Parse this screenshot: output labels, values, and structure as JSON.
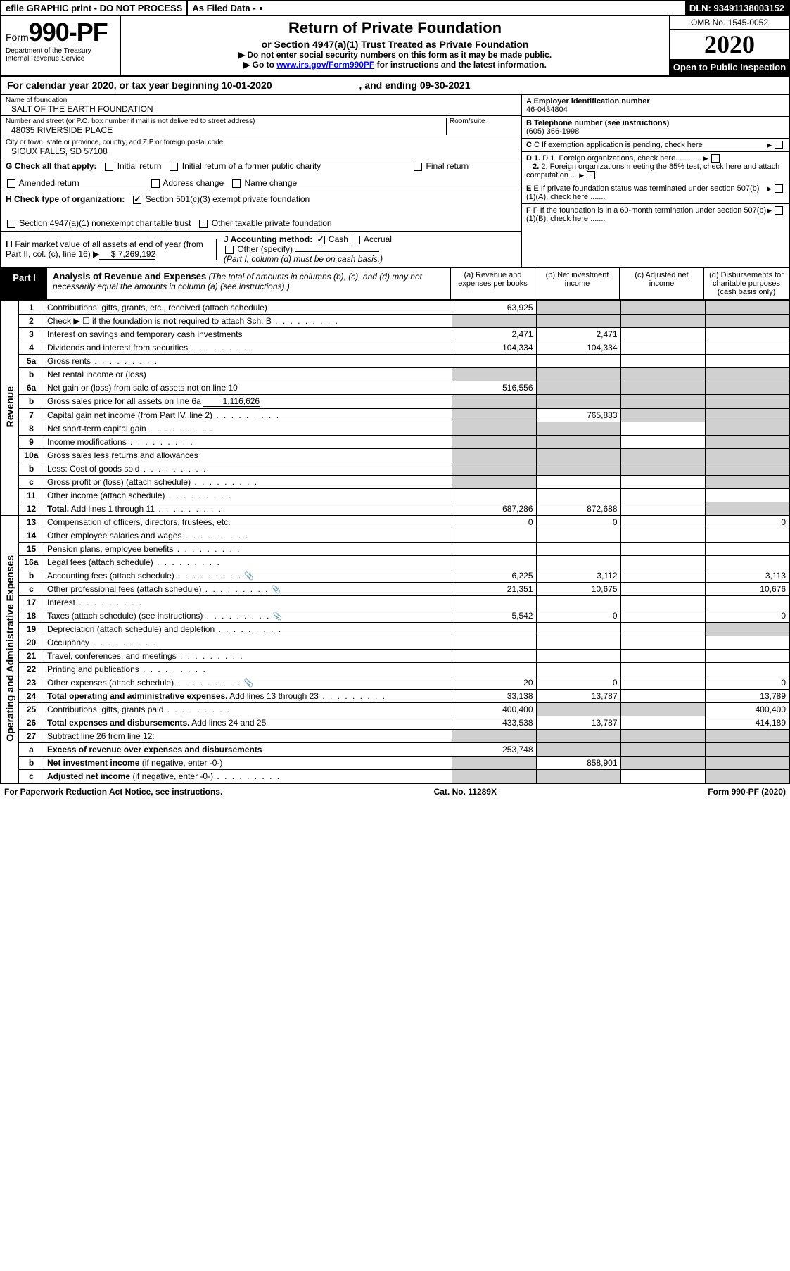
{
  "top": {
    "efile": "efile GRAPHIC print - DO NOT PROCESS",
    "asfiled": "As Filed Data -",
    "dln": "DLN: 93491138003152"
  },
  "header": {
    "form_prefix": "Form",
    "form_no": "990-PF",
    "dept1": "Department of the Treasury",
    "dept2": "Internal Revenue Service",
    "title": "Return of Private Foundation",
    "subtitle": "or Section 4947(a)(1) Trust Treated as Private Foundation",
    "note1": "▶  Do not enter social security numbers on this form as it may be made public.",
    "note2_pre": "▶ Go to ",
    "note2_link": "www.irs.gov/Form990PF",
    "note2_post": " for instructions and the latest information.",
    "omb": "OMB No. 1545-0052",
    "year": "2020",
    "open": "Open to Public Inspection"
  },
  "calyear": {
    "text": "For calendar year 2020, or tax year beginning 10-01-2020",
    "end": ", and ending 09-30-2021"
  },
  "entity": {
    "name_lbl": "Name of foundation",
    "name": "SALT OF THE EARTH FOUNDATION",
    "addr_lbl": "Number and street (or P.O. box number if mail is not delivered to street address)",
    "room_lbl": "Room/suite",
    "addr": "48035 RIVERSIDE PLACE",
    "city_lbl": "City or town, state or province, country, and ZIP or foreign postal code",
    "city": "SIOUX FALLS, SD  57108",
    "g_lbl": "G Check all that apply:",
    "g_opts": [
      "Initial return",
      "Initial return of a former public charity",
      "Final return",
      "Amended return",
      "Address change",
      "Name change"
    ],
    "h_lbl": "H Check type of organization:",
    "h_opt1": "Section 501(c)(3) exempt private foundation",
    "h_opt2": "Section 4947(a)(1) nonexempt charitable trust",
    "h_opt3": "Other taxable private foundation",
    "i_lbl": "I Fair market value of all assets at end of year (from Part II, col. (c), line 16)",
    "i_val": "$  7,269,192",
    "j_lbl": "J Accounting method:",
    "j_opts": [
      "Cash",
      "Accrual",
      "Other (specify)"
    ],
    "j_note": "(Part I, column (d) must be on cash basis.)"
  },
  "right": {
    "a_lbl": "A Employer identification number",
    "a_val": "46-0434804",
    "b_lbl": "B Telephone number (see instructions)",
    "b_val": "(605) 366-1998",
    "c_lbl": "C If exemption application is pending, check here",
    "d1": "D 1. Foreign organizations, check here............",
    "d2": "2. Foreign organizations meeting the 85% test, check here and attach computation ...",
    "e_lbl": "E  If private foundation status was terminated under section 507(b)(1)(A), check here .......",
    "f_lbl": "F  If the foundation is in a 60-month termination under section 507(b)(1)(B), check here ......."
  },
  "part1": {
    "label": "Part I",
    "title": "Analysis of Revenue and Expenses",
    "note": " (The total of amounts in columns (b), (c), and (d) may not necessarily equal the amounts in column (a) (see instructions).)",
    "cols": [
      "(a)   Revenue and expenses per books",
      "(b)  Net investment income",
      "(c)  Adjusted net income",
      "(d)  Disbursements for charitable purposes (cash basis only)"
    ]
  },
  "sections": {
    "revenue": "Revenue",
    "expenses": "Operating and Administrative Expenses"
  },
  "rows": [
    {
      "sec": "rev",
      "n": "1",
      "d": "Contributions, gifts, grants, etc., received (attach schedule)",
      "a": "63,925",
      "bs": true,
      "cs": true,
      "ds": true
    },
    {
      "sec": "rev",
      "n": "2",
      "d": "Check ▶ ☐ if the foundation is <b>not</b> required to attach Sch. B",
      "dots": true,
      "as": true,
      "bs": true,
      "cs": true,
      "ds": true
    },
    {
      "sec": "rev",
      "n": "3",
      "d": "Interest on savings and temporary cash investments",
      "a": "2,471",
      "b": "2,471"
    },
    {
      "sec": "rev",
      "n": "4",
      "d": "Dividends and interest from securities",
      "dots": true,
      "a": "104,334",
      "b": "104,334"
    },
    {
      "sec": "rev",
      "n": "5a",
      "d": "Gross rents",
      "dots": true
    },
    {
      "sec": "rev",
      "n": "b",
      "d": "Net rental income or (loss)",
      "as": true,
      "bs": true,
      "cs": true,
      "ds": true
    },
    {
      "sec": "rev",
      "n": "6a",
      "d": "Net gain or (loss) from sale of assets not on line 10",
      "a": "516,556",
      "bs": true,
      "cs": true,
      "ds": true
    },
    {
      "sec": "rev",
      "n": "b",
      "d": "Gross sales price for all assets on line 6a",
      "tail": "1,116,626",
      "as": true,
      "bs": true,
      "cs": true,
      "ds": true
    },
    {
      "sec": "rev",
      "n": "7",
      "d": "Capital gain net income (from Part IV, line 2)",
      "dots": true,
      "as": true,
      "b": "765,883",
      "cs": true,
      "ds": true
    },
    {
      "sec": "rev",
      "n": "8",
      "d": "Net short-term capital gain",
      "dots": true,
      "as": true,
      "bs": true,
      "ds": true
    },
    {
      "sec": "rev",
      "n": "9",
      "d": "Income modifications",
      "dots": true,
      "as": true,
      "bs": true,
      "ds": true
    },
    {
      "sec": "rev",
      "n": "10a",
      "d": "Gross sales less returns and allowances",
      "as": true,
      "bs": true,
      "cs": true,
      "ds": true
    },
    {
      "sec": "rev",
      "n": "b",
      "d": "Less: Cost of goods sold",
      "dots": true,
      "as": true,
      "bs": true,
      "cs": true,
      "ds": true
    },
    {
      "sec": "rev",
      "n": "c",
      "d": "Gross profit or (loss) (attach schedule)",
      "dots": true,
      "as": true,
      "ds": true
    },
    {
      "sec": "rev",
      "n": "11",
      "d": "Other income (attach schedule)",
      "dots": true
    },
    {
      "sec": "rev",
      "n": "12",
      "d": "<b>Total.</b> Add lines 1 through 11",
      "dots": true,
      "a": "687,286",
      "b": "872,688",
      "ds": true
    },
    {
      "sec": "exp",
      "n": "13",
      "d": "Compensation of officers, directors, trustees, etc.",
      "a": "0",
      "b": "0",
      "d_": "0"
    },
    {
      "sec": "exp",
      "n": "14",
      "d": "Other employee salaries and wages",
      "dots": true
    },
    {
      "sec": "exp",
      "n": "15",
      "d": "Pension plans, employee benefits",
      "dots": true
    },
    {
      "sec": "exp",
      "n": "16a",
      "d": "Legal fees (attach schedule)",
      "dots": true
    },
    {
      "sec": "exp",
      "n": "b",
      "d": "Accounting fees (attach schedule)",
      "dots": true,
      "icon": true,
      "a": "6,225",
      "b": "3,112",
      "d_": "3,113"
    },
    {
      "sec": "exp",
      "n": "c",
      "d": "Other professional fees (attach schedule)",
      "dots": true,
      "icon": true,
      "a": "21,351",
      "b": "10,675",
      "d_": "10,676"
    },
    {
      "sec": "exp",
      "n": "17",
      "d": "Interest",
      "dots": true
    },
    {
      "sec": "exp",
      "n": "18",
      "d": "Taxes (attach schedule) (see instructions)",
      "dots": true,
      "icon": true,
      "a": "5,542",
      "b": "0",
      "d_": "0"
    },
    {
      "sec": "exp",
      "n": "19",
      "d": "Depreciation (attach schedule) and depletion",
      "dots": true,
      "ds": true
    },
    {
      "sec": "exp",
      "n": "20",
      "d": "Occupancy",
      "dots": true
    },
    {
      "sec": "exp",
      "n": "21",
      "d": "Travel, conferences, and meetings",
      "dots": true
    },
    {
      "sec": "exp",
      "n": "22",
      "d": "Printing and publications",
      "dots": true
    },
    {
      "sec": "exp",
      "n": "23",
      "d": "Other expenses (attach schedule)",
      "dots": true,
      "icon": true,
      "a": "20",
      "b": "0",
      "d_": "0"
    },
    {
      "sec": "exp",
      "n": "24",
      "d": "<b>Total operating and administrative expenses.</b> Add lines 13 through 23",
      "dots": true,
      "a": "33,138",
      "b": "13,787",
      "d_": "13,789"
    },
    {
      "sec": "exp",
      "n": "25",
      "d": "Contributions, gifts, grants paid",
      "dots": true,
      "a": "400,400",
      "bs": true,
      "cs": true,
      "d_": "400,400"
    },
    {
      "sec": "exp",
      "n": "26",
      "d": "<b>Total expenses and disbursements.</b> Add lines 24 and 25",
      "a": "433,538",
      "b": "13,787",
      "d_": "414,189"
    },
    {
      "sec": "net",
      "n": "27",
      "d": "Subtract line 26 from line 12:",
      "as": true,
      "bs": true,
      "cs": true,
      "ds": true
    },
    {
      "sec": "net",
      "n": "a",
      "d": "<b>Excess of revenue over expenses and disbursements</b>",
      "a": "253,748",
      "bs": true,
      "cs": true,
      "ds": true
    },
    {
      "sec": "net",
      "n": "b",
      "d": "<b>Net investment income</b> (if negative, enter -0-)",
      "as": true,
      "b": "858,901",
      "cs": true,
      "ds": true
    },
    {
      "sec": "net",
      "n": "c",
      "d": "<b>Adjusted net income</b> (if negative, enter -0-)",
      "dots": true,
      "as": true,
      "bs": true,
      "ds": true
    }
  ],
  "footer": {
    "left": "For Paperwork Reduction Act Notice, see instructions.",
    "mid": "Cat. No. 11289X",
    "right": "Form 990-PF (2020)"
  }
}
